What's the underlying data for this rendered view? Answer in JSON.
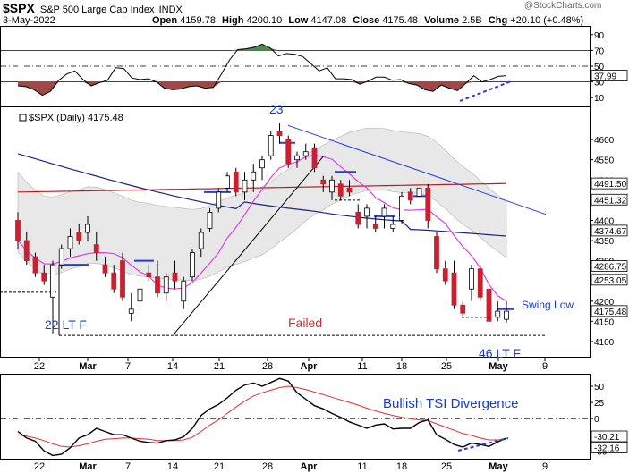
{
  "header": {
    "symbol": "$SPX",
    "name": "S&P 500 Large Cap Index",
    "exchange": "INDX",
    "date": "3-May-2022",
    "open_label": "Open",
    "open": "4159.78",
    "high_label": "High",
    "high": "4200.10",
    "low_label": "Low",
    "low": "4147.08",
    "close_label": "Close",
    "close": "4175.48",
    "volume_label": "Volume",
    "volume": "2.5B",
    "chg_label": "Chg",
    "chg": "+20.10 (+0.48%)",
    "watermark": "@StockCharts.com"
  },
  "colors": {
    "up": "#ffffff",
    "down": "#cc1f2f",
    "outline": "#000000",
    "ma_red": "#b32020",
    "ma_blue": "#1a237e",
    "bb_pink": "#e040e0",
    "band_fill": "#e8e8e8",
    "trend_blue": "#2a3adb",
    "annot_blue": "#1a3ccc",
    "annot_red": "#d32f2f",
    "osc_green": "#4d8a4d",
    "osc_red": "#a04848"
  },
  "chart_data": [
    {
      "type": "line",
      "name": "top-oscillator",
      "y_ticks": [
        10,
        30,
        50,
        70,
        90
      ],
      "ylim": [
        0,
        100
      ],
      "level_lines": [
        30,
        50,
        70
      ],
      "last_value": "37.99",
      "values": [
        25,
        24,
        20,
        13,
        18,
        32,
        40,
        44,
        33,
        25,
        29,
        32,
        48,
        47,
        35,
        33,
        34,
        30,
        22,
        20,
        21,
        24,
        25,
        22,
        23,
        40,
        58,
        71,
        72,
        74,
        78,
        73,
        63,
        66,
        65,
        62,
        53,
        44,
        48,
        34,
        34,
        33,
        27,
        31,
        36,
        36,
        32,
        33,
        28,
        26,
        20,
        18,
        26,
        22,
        19,
        28,
        38,
        30,
        33,
        37,
        38
      ]
    },
    {
      "type": "candlestick",
      "name": "price",
      "legend": "$SPX (Daily) 4175.48",
      "x_labels": [
        "22",
        "Mar",
        "7",
        "14",
        "21",
        "28",
        "Apr",
        "11",
        "18",
        "25",
        "May",
        "9"
      ],
      "y_ticks": [
        4100,
        4150,
        4200,
        4250,
        4300,
        4350,
        4400,
        4450,
        4500,
        4550,
        4600
      ],
      "ylim": [
        4060,
        4680
      ],
      "price_labels": [
        "4491.50",
        "4451.32",
        "4374.67",
        "4286.75",
        "4253.05",
        "4175.48"
      ],
      "candles": [
        [
          4400,
          4420,
          4330,
          4350
        ],
        [
          4350,
          4370,
          4290,
          4300
        ],
        [
          4310,
          4320,
          4260,
          4270
        ],
        [
          4270,
          4290,
          4240,
          4250
        ],
        [
          4210,
          4300,
          4120,
          4290
        ],
        [
          4290,
          4340,
          4280,
          4330
        ],
        [
          4330,
          4380,
          4310,
          4360
        ],
        [
          4370,
          4390,
          4340,
          4350
        ],
        [
          4370,
          4410,
          4350,
          4390
        ],
        [
          4340,
          4370,
          4300,
          4320
        ],
        [
          4290,
          4310,
          4260,
          4270
        ],
        [
          4270,
          4290,
          4220,
          4230
        ],
        [
          4300,
          4320,
          4200,
          4210
        ],
        [
          4170,
          4220,
          4150,
          4180
        ],
        [
          4200,
          4240,
          4170,
          4230
        ],
        [
          4270,
          4290,
          4250,
          4260
        ],
        [
          4260,
          4300,
          4210,
          4220
        ],
        [
          4220,
          4270,
          4200,
          4260
        ],
        [
          4270,
          4300,
          4230,
          4250
        ],
        [
          4200,
          4260,
          4180,
          4250
        ],
        [
          4260,
          4330,
          4250,
          4320
        ],
        [
          4330,
          4380,
          4310,
          4370
        ],
        [
          4380,
          4430,
          4370,
          4420
        ],
        [
          4430,
          4480,
          4420,
          4470
        ],
        [
          4480,
          4520,
          4470,
          4510
        ],
        [
          4520,
          4530,
          4460,
          4470
        ],
        [
          4470,
          4520,
          4450,
          4500
        ],
        [
          4500,
          4540,
          4470,
          4520
        ],
        [
          4530,
          4560,
          4500,
          4550
        ],
        [
          4560,
          4620,
          4550,
          4610
        ],
        [
          4620,
          4640,
          4590,
          4610
        ],
        [
          4600,
          4610,
          4530,
          4540
        ],
        [
          4550,
          4570,
          4530,
          4560
        ],
        [
          4560,
          4590,
          4550,
          4570
        ],
        [
          4580,
          4590,
          4520,
          4530
        ],
        [
          4500,
          4510,
          4470,
          4490
        ],
        [
          4470,
          4510,
          4450,
          4500
        ],
        [
          4490,
          4500,
          4450,
          4460
        ],
        [
          4480,
          4500,
          4460,
          4470
        ],
        [
          4420,
          4440,
          4380,
          4390
        ],
        [
          4410,
          4440,
          4380,
          4430
        ],
        [
          4390,
          4410,
          4370,
          4380
        ],
        [
          4410,
          4440,
          4380,
          4430
        ],
        [
          4380,
          4410,
          4370,
          4390
        ],
        [
          4400,
          4470,
          4390,
          4460
        ],
        [
          4470,
          4480,
          4440,
          4450
        ],
        [
          4460,
          4480,
          4460,
          4480
        ],
        [
          4480,
          4490,
          4380,
          4400
        ],
        [
          4360,
          4370,
          4270,
          4280
        ],
        [
          4280,
          4300,
          4240,
          4250
        ],
        [
          4270,
          4300,
          4180,
          4190
        ],
        [
          4190,
          4200,
          4160,
          4170
        ],
        [
          4230,
          4290,
          4200,
          4280
        ],
        [
          4280,
          4290,
          4200,
          4210
        ],
        [
          4230,
          4240,
          4140,
          4150
        ],
        [
          4160,
          4200,
          4150,
          4175
        ],
        [
          4155,
          4200,
          4147,
          4175
        ]
      ]
    },
    {
      "type": "line",
      "name": "tsi",
      "y_ticks": [
        50,
        25,
        0,
        -25,
        -50
      ],
      "ylim": [
        -62,
        68
      ],
      "zero_line": 0,
      "last_values": [
        "-30.21",
        "-32.16"
      ],
      "series": [
        {
          "values": [
            -20,
            -30,
            -35,
            -50,
            -57,
            -55,
            -45,
            -30,
            -25,
            -15,
            -20,
            -25,
            -25,
            -30,
            -35,
            -37,
            -38,
            -34,
            -33,
            -28,
            -15,
            5,
            15,
            22,
            32,
            44,
            52,
            55,
            50,
            56,
            62,
            58,
            40,
            30,
            20,
            15,
            8,
            2,
            -5,
            -10,
            -15,
            -10,
            -8,
            -16,
            -15,
            -15,
            -6,
            -2,
            -25,
            -32,
            -40,
            -44,
            -38,
            -40,
            -43,
            -36,
            -30
          ]
        },
        {
          "values": [
            -25,
            -27,
            -30,
            -34,
            -39,
            -43,
            -44,
            -42,
            -39,
            -35,
            -32,
            -31,
            -30,
            -30,
            -31,
            -32,
            -34,
            -34,
            -34,
            -33,
            -29,
            -20,
            -10,
            -2,
            8,
            18,
            27,
            35,
            40,
            44,
            48,
            50,
            48,
            45,
            41,
            37,
            33,
            29,
            25,
            21,
            16,
            12,
            8,
            5,
            2,
            0,
            -2,
            -3,
            -8,
            -13,
            -18,
            -23,
            -26,
            -30,
            -33,
            -33,
            -32
          ]
        }
      ]
    }
  ],
  "annotations": {
    "peak": "23",
    "lt_left": "22 LT F",
    "failed": "Failed",
    "lt_right": "46 LT F",
    "swing_low": "Swing Low",
    "tsi_div": "Bullish TSI Divergence"
  }
}
